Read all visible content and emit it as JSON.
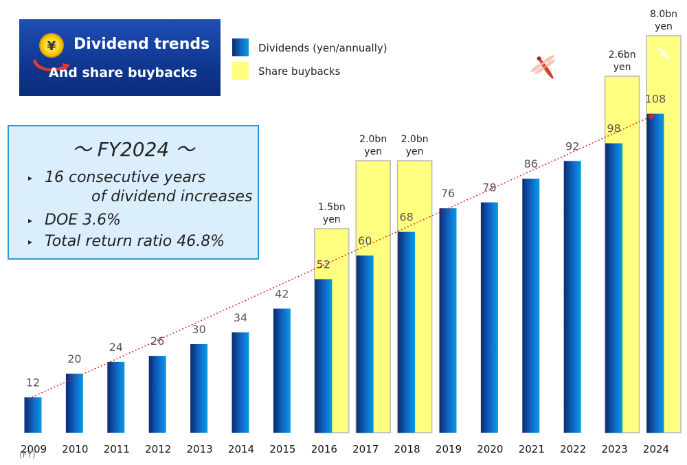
{
  "title": {
    "line1": "Dividend trends",
    "line2": "And share buybacks"
  },
  "legend": {
    "dividends": "Dividends (yen/annually)",
    "buybacks": "Share buybacks"
  },
  "info_box": {
    "heading": "～ FY2024 ～",
    "items": [
      "16 consecutive years",
      "of dividend increases",
      "DOE 3.6%",
      "Total return ratio 46.8%"
    ]
  },
  "axis": {
    "unit_label": "(FY)"
  },
  "colors": {
    "dividend_dark": "#0b2b6e",
    "dividend_light": "#0a9be0",
    "buyback_fill": "#ffff80",
    "buyback_stroke": "#b8b8b8",
    "trend_line": "#e02020",
    "panel": "#0f3791"
  },
  "icons": {
    "title_icon": "yen-coin-icon",
    "decoration": "dragonfly-icon"
  },
  "chart_data": {
    "type": "bar",
    "categories": [
      "2009",
      "2010",
      "2011",
      "2012",
      "2013",
      "2014",
      "2015",
      "2016",
      "2017",
      "2018",
      "2019",
      "2020",
      "2021",
      "2022",
      "2023",
      "2024"
    ],
    "series": [
      {
        "name": "Dividends (yen/annually)",
        "values": [
          12,
          20,
          24,
          26,
          30,
          34,
          42,
          52,
          60,
          68,
          76,
          78,
          86,
          92,
          98,
          108
        ]
      }
    ],
    "buybacks": [
      {
        "year": "2016",
        "label_line1": "1.5bn",
        "label_line2": "yen",
        "amount": 1.5
      },
      {
        "year": "2017",
        "label_line1": "2.0bn",
        "label_line2": "yen",
        "amount": 2.0
      },
      {
        "year": "2018",
        "label_line1": "2.0bn",
        "label_line2": "yen",
        "amount": 2.0
      },
      {
        "year": "2023",
        "label_line1": "2.6bn",
        "label_line2": "yen",
        "amount": 2.6
      },
      {
        "year": "2024",
        "label_line1": "8.0bn",
        "label_line2": "yen",
        "amount": 8.0
      }
    ],
    "trend_line": "dotted",
    "legend_position": "top-center"
  }
}
